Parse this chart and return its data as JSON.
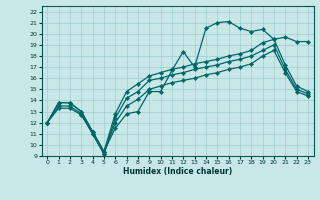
{
  "xlabel": "Humidex (Indice chaleur)",
  "bg_color": "#c8e8e8",
  "line_color": "#006666",
  "grid_color": "#a0cccc",
  "xlim": [
    -0.5,
    23.5
  ],
  "ylim": [
    9,
    22.5
  ],
  "xticks": [
    0,
    1,
    2,
    3,
    4,
    5,
    6,
    7,
    8,
    9,
    10,
    11,
    12,
    13,
    14,
    15,
    16,
    17,
    18,
    19,
    20,
    21,
    22,
    23
  ],
  "yticks": [
    9,
    10,
    11,
    12,
    13,
    14,
    15,
    16,
    17,
    18,
    19,
    20,
    21,
    22
  ],
  "line1_x": [
    0,
    1,
    2,
    3,
    4,
    5,
    6,
    7,
    8,
    9,
    10,
    11,
    12,
    13,
    14,
    15,
    16,
    17,
    18,
    19,
    20,
    21,
    22,
    23
  ],
  "line1_y": [
    12.0,
    13.8,
    13.8,
    13.0,
    11.2,
    9.4,
    11.5,
    12.8,
    13.0,
    14.8,
    14.8,
    16.7,
    18.4,
    17.0,
    20.5,
    21.0,
    21.1,
    20.5,
    20.2,
    20.4,
    19.5,
    19.7,
    19.3,
    19.3
  ],
  "line2_x": [
    0,
    1,
    2,
    3,
    4,
    5,
    6,
    7,
    8,
    9,
    10,
    11,
    12,
    13,
    14,
    15,
    16,
    17,
    18,
    19,
    20,
    21,
    22,
    23
  ],
  "line2_y": [
    12.0,
    13.8,
    13.8,
    13.0,
    11.2,
    9.4,
    12.8,
    14.8,
    15.5,
    16.2,
    16.5,
    16.8,
    17.0,
    17.3,
    17.5,
    17.7,
    18.0,
    18.2,
    18.5,
    19.2,
    19.5,
    17.2,
    15.3,
    14.8
  ],
  "line3_x": [
    0,
    1,
    2,
    3,
    4,
    5,
    6,
    7,
    8,
    9,
    10,
    11,
    12,
    13,
    14,
    15,
    16,
    17,
    18,
    19,
    20,
    21,
    22,
    23
  ],
  "line3_y": [
    12.0,
    13.5,
    13.5,
    12.8,
    11.0,
    9.2,
    12.4,
    14.2,
    14.8,
    15.8,
    16.0,
    16.3,
    16.5,
    16.8,
    17.0,
    17.2,
    17.5,
    17.7,
    18.0,
    18.5,
    19.0,
    16.8,
    15.0,
    14.6
  ],
  "line4_x": [
    0,
    1,
    2,
    3,
    4,
    5,
    6,
    7,
    8,
    9,
    10,
    11,
    12,
    13,
    14,
    15,
    16,
    17,
    18,
    19,
    20,
    21,
    22,
    23
  ],
  "line4_y": [
    12.0,
    13.3,
    13.3,
    12.7,
    11.0,
    9.2,
    12.0,
    13.5,
    14.1,
    15.0,
    15.3,
    15.6,
    15.8,
    16.0,
    16.3,
    16.5,
    16.8,
    17.0,
    17.3,
    18.0,
    18.5,
    16.5,
    14.8,
    14.4
  ]
}
